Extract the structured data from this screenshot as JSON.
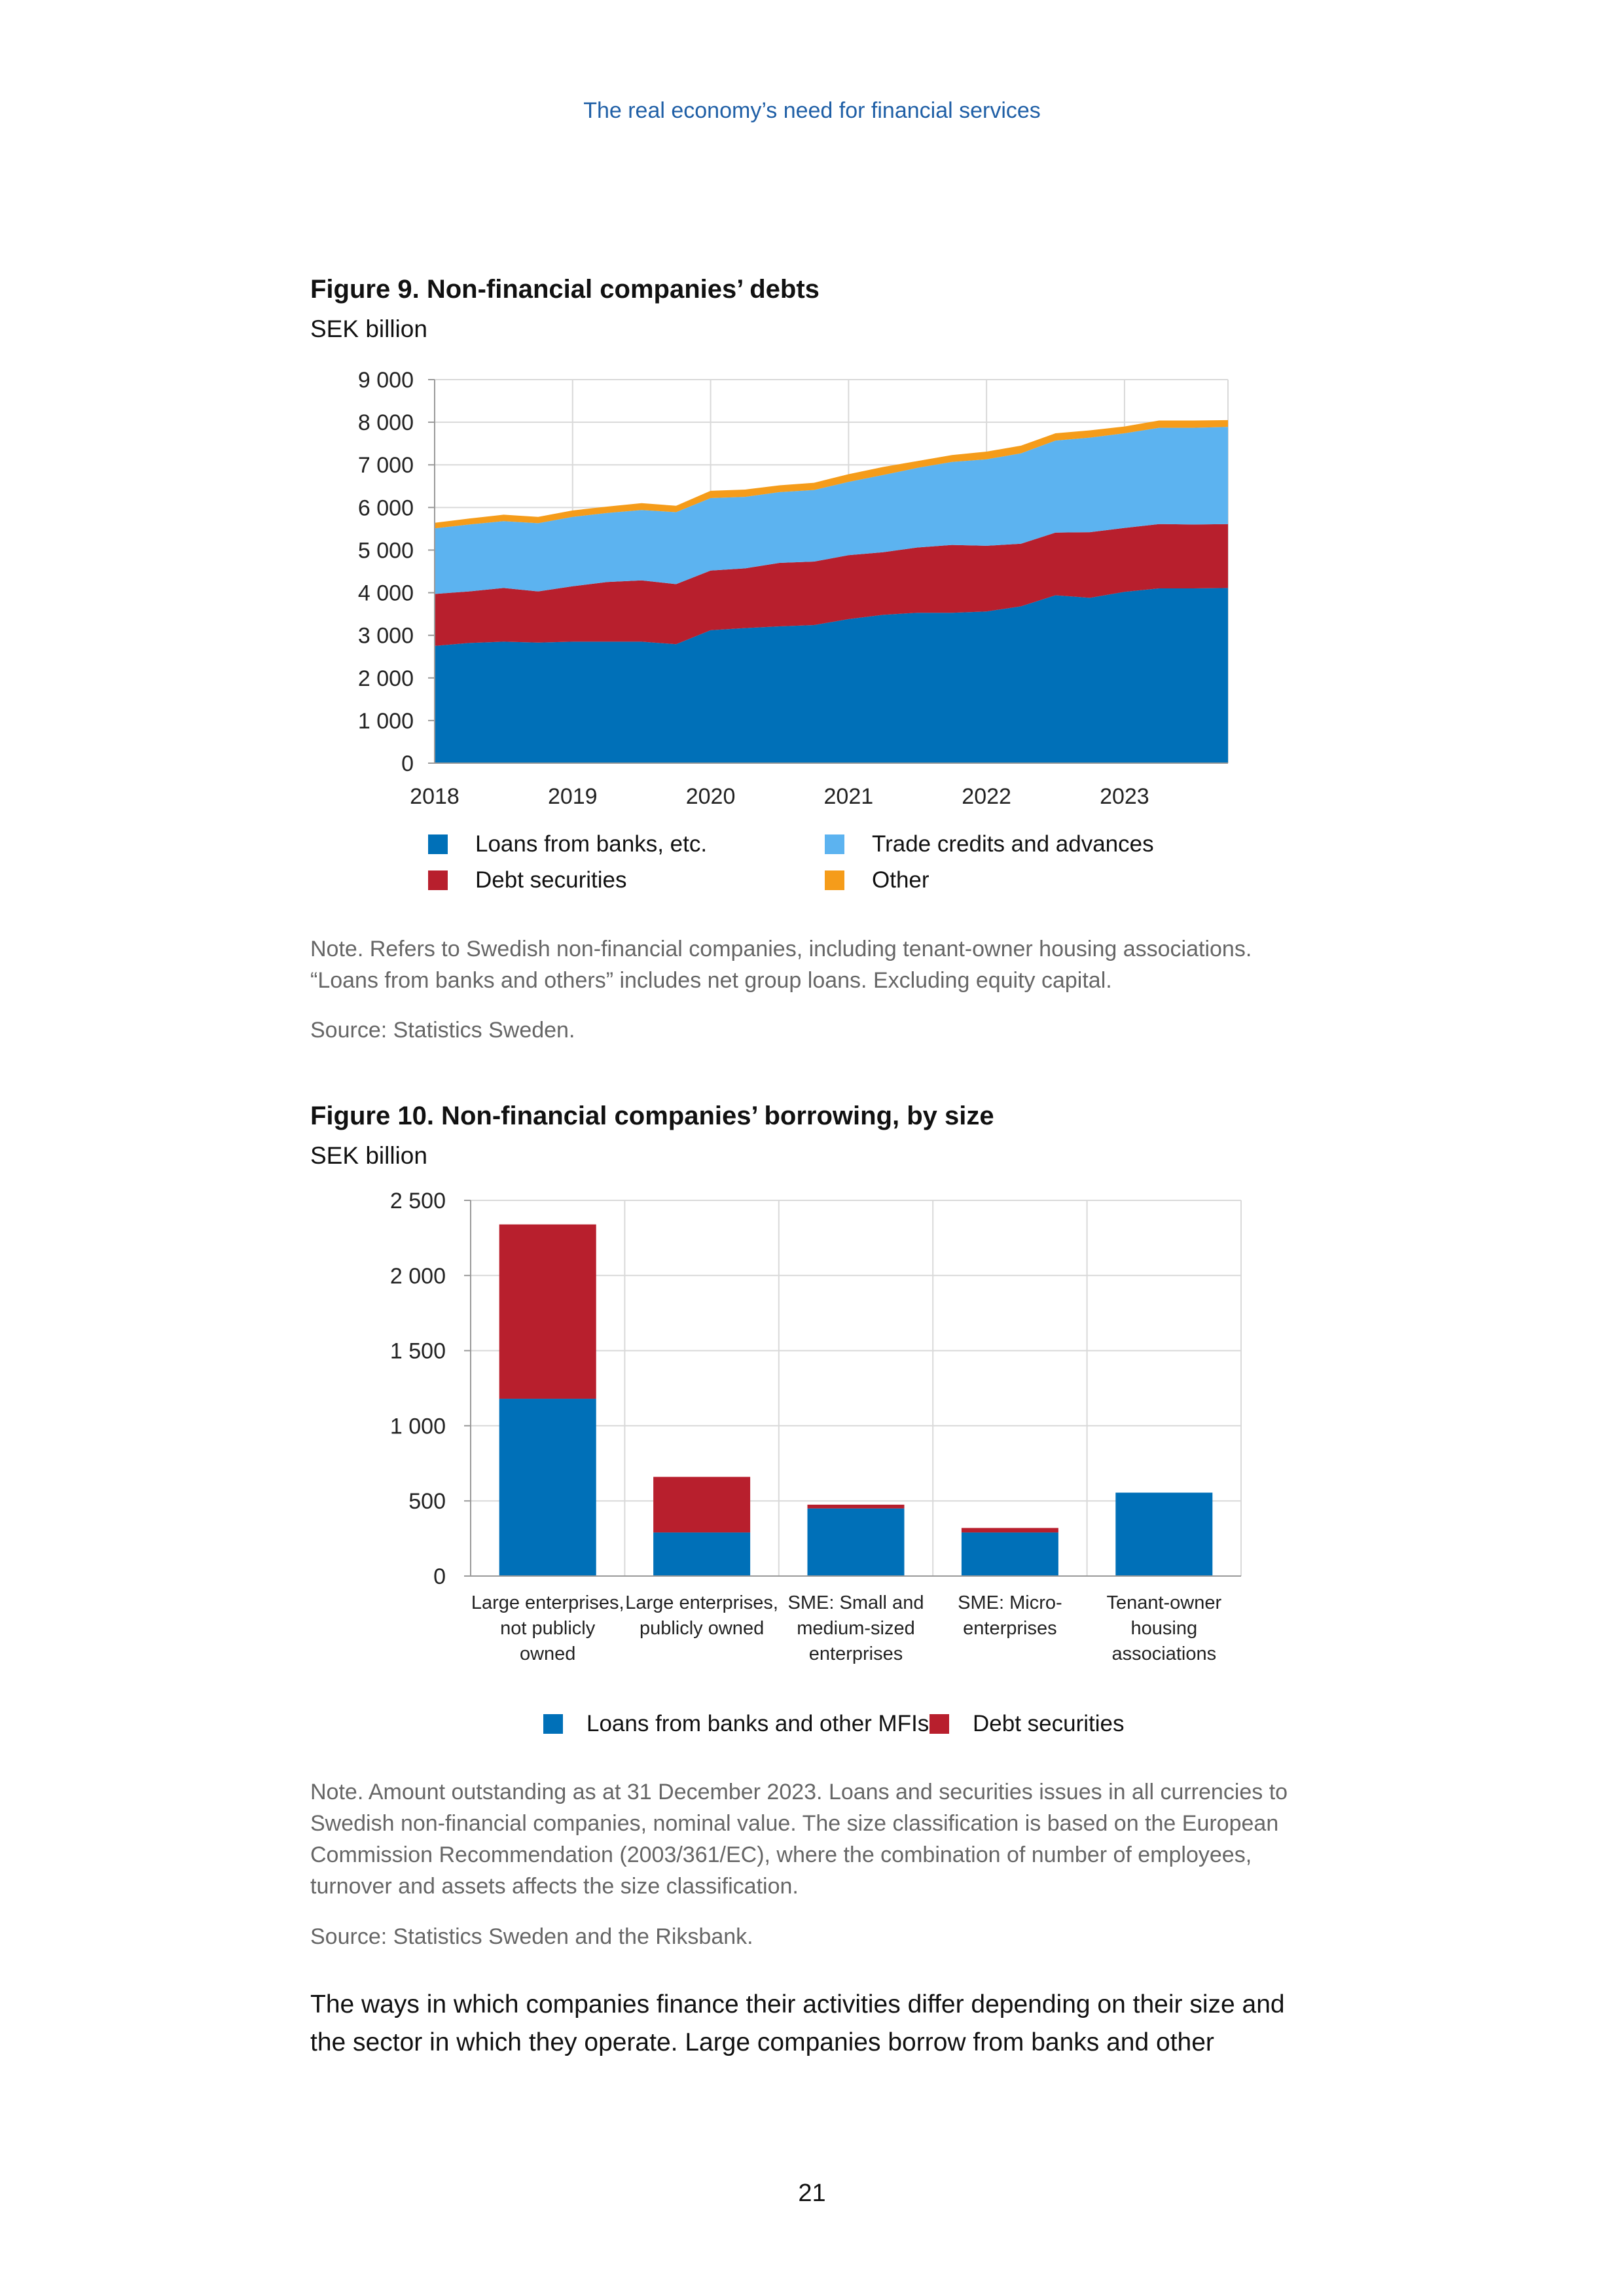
{
  "header": {
    "running_title": "The real economy’s need for financial services"
  },
  "figure9": {
    "title": "Figure 9. Non-financial companies’ debts",
    "unit": "SEK billion",
    "note": "Note. Refers to Swedish non-financial companies, including tenant-owner housing associations. “Loans from banks and others” includes net group loans. Excluding equity capital.",
    "source": "Source: Statistics Sweden.",
    "legend": [
      {
        "label": "Loans from banks, etc.",
        "color": "#0070b8"
      },
      {
        "label": "Trade credits and advances",
        "color": "#5cb3f0"
      },
      {
        "label": "Debt securities",
        "color": "#b81f2d"
      },
      {
        "label": "Other",
        "color": "#f59c1a"
      }
    ]
  },
  "figure10": {
    "title": "Figure 10. Non-financial companies’ borrowing, by size",
    "unit": "SEK billion",
    "note": "Note. Amount outstanding as at 31 December 2023. Loans and securities issues in all currencies to Swedish non-financial companies, nominal value. The size classification is based on the European Commission Recommendation (2003/361/EC), where the combination of number of employees, turnover and assets affects the size classification.",
    "source": "Source: Statistics Sweden and the Riksbank.",
    "legend": [
      {
        "label": "Loans from banks and other MFIs",
        "color": "#0070b8"
      },
      {
        "label": "Debt securities",
        "color": "#b81f2d"
      }
    ]
  },
  "body": {
    "paragraph": "The ways in which companies finance their activities differ depending on their size and the sector in which they operate. Large companies borrow from banks and other"
  },
  "footer": {
    "page_number": "21"
  },
  "chart_data": [
    {
      "type": "area",
      "stacked": true,
      "title": "Figure 9. Non-financial companies’ debts",
      "ylabel": "SEK billion",
      "ylim": [
        0,
        9000
      ],
      "yticks": [
        0,
        1000,
        2000,
        3000,
        4000,
        5000,
        6000,
        7000,
        8000,
        9000
      ],
      "ytick_labels": [
        "0",
        "1 000",
        "2 000",
        "3 000",
        "4 000",
        "5 000",
        "6 000",
        "7 000",
        "8 000",
        "9 000"
      ],
      "xlim": [
        2018,
        2023.75
      ],
      "xticks": [
        2018,
        2019,
        2020,
        2021,
        2022,
        2023
      ],
      "xtick_labels": [
        "2018",
        "2019",
        "2020",
        "2021",
        "2022",
        "2023"
      ],
      "grid": true,
      "legend_position": "bottom",
      "x": [
        2018,
        2018.25,
        2018.5,
        2018.75,
        2019,
        2019.25,
        2019.5,
        2019.75,
        2020,
        2020.25,
        2020.5,
        2020.75,
        2021,
        2021.25,
        2021.5,
        2021.75,
        2022,
        2022.25,
        2022.5,
        2022.75,
        2023,
        2023.25,
        2023.5,
        2023.75
      ],
      "series": [
        {
          "name": "Loans from banks, etc.",
          "color": "#0070b8",
          "values": [
            2750,
            2820,
            2850,
            2830,
            2850,
            2850,
            2850,
            2790,
            3120,
            3170,
            3210,
            3240,
            3380,
            3480,
            3530,
            3530,
            3560,
            3680,
            3940,
            3880,
            4020,
            4100,
            4100,
            4110
          ]
        },
        {
          "name": "Debt securities",
          "color": "#b81f2d",
          "values": [
            1220,
            1210,
            1260,
            1200,
            1300,
            1400,
            1440,
            1410,
            1400,
            1400,
            1490,
            1490,
            1500,
            1470,
            1530,
            1590,
            1540,
            1470,
            1470,
            1540,
            1500,
            1510,
            1500,
            1500
          ]
        },
        {
          "name": "Trade credits and advances",
          "color": "#5cb3f0",
          "values": [
            1540,
            1570,
            1570,
            1600,
            1630,
            1620,
            1650,
            1690,
            1700,
            1680,
            1660,
            1680,
            1720,
            1810,
            1870,
            1950,
            2030,
            2120,
            2160,
            2220,
            2220,
            2260,
            2270,
            2280
          ]
        },
        {
          "name": "Other",
          "color": "#f59c1a",
          "values": [
            130,
            140,
            150,
            150,
            150,
            150,
            160,
            150,
            170,
            170,
            160,
            170,
            180,
            190,
            160,
            160,
            180,
            180,
            170,
            170,
            160,
            170,
            170,
            160
          ]
        }
      ]
    },
    {
      "type": "bar",
      "stacked": true,
      "title": "Figure 10. Non-financial companies’ borrowing, by size",
      "ylabel": "SEK billion",
      "ylim": [
        0,
        2500
      ],
      "yticks": [
        0,
        500,
        1000,
        1500,
        2000,
        2500
      ],
      "ytick_labels": [
        "0",
        "500",
        "1 000",
        "1 500",
        "2 000",
        "2 500"
      ],
      "grid": true,
      "legend_position": "bottom",
      "categories": [
        [
          "Large enterprises,",
          "not publicly",
          "owned"
        ],
        [
          "Large enterprises,",
          "publicly owned"
        ],
        [
          "SME: Small and",
          "medium-sized",
          "enterprises"
        ],
        [
          "SME: Micro-",
          "enterprises"
        ],
        [
          "Tenant-owner",
          "housing",
          "associations"
        ]
      ],
      "series": [
        {
          "name": "Loans from banks and other MFIs",
          "color": "#0070b8",
          "values": [
            1180,
            290,
            450,
            290,
            555
          ]
        },
        {
          "name": "Debt securities",
          "color": "#b81f2d",
          "values": [
            1160,
            370,
            25,
            30,
            0
          ]
        }
      ]
    }
  ]
}
